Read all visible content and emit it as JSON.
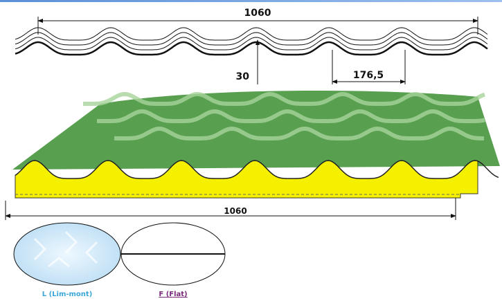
{
  "dimensions": {
    "top_width": "1060",
    "height": "30",
    "pitch": "176,5",
    "bottom_width": "1060"
  },
  "options": [
    {
      "label": "L (Lim-mont)"
    },
    {
      "label": "F (Flat)"
    }
  ]
}
